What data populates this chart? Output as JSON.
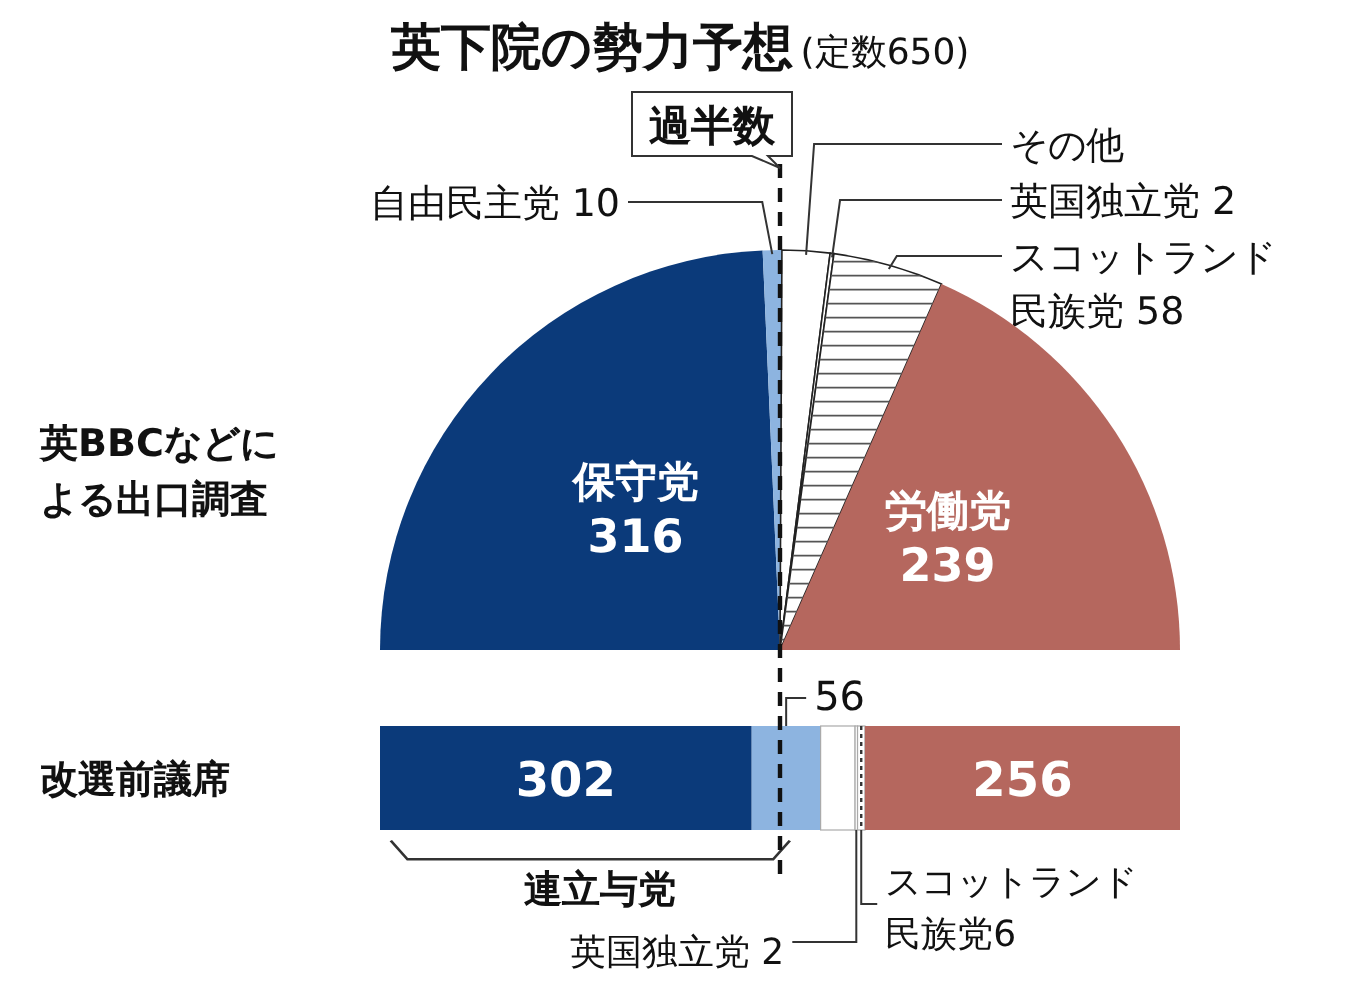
{
  "chart_data": [
    {
      "type": "pie",
      "title": "英下院の勢力予想",
      "subtitle": "(定数650)",
      "annotations": [
        "英BBCなどによる出口調査"
      ],
      "categories": [
        "保守党",
        "自由民主党",
        "その他",
        "英国独立党",
        "スコットランド民族党",
        "労働党"
      ],
      "values": [
        316,
        10,
        25,
        2,
        58,
        239
      ],
      "value_labels": [
        "316",
        "10",
        null,
        "2",
        "58",
        "239"
      ],
      "colors": [
        "#0b3a7a",
        "#8db4e0",
        "#ffffff",
        "#ffffff",
        "#ffffff",
        "#b5675e"
      ]
    },
    {
      "type": "bar",
      "orientation": "horizontal",
      "stacked": true,
      "categories": [
        "改選前議席"
      ],
      "xlim": [
        0,
        650
      ],
      "series": [
        {
          "color": "#0b3a7a",
          "values": [
            302
          ],
          "value_labels": [
            "302"
          ]
        },
        {
          "color": "#8db4e0",
          "values": [
            56
          ],
          "value_labels": [
            "56"
          ]
        },
        {
          "color": "#ffffff",
          "values": [
            28
          ]
        },
        {
          "name": "英国独立党",
          "color": "#ffffff",
          "values": [
            2
          ],
          "value_labels": [
            "2"
          ]
        },
        {
          "name": "スコットランド民族党",
          "color": "#ffffff",
          "values": [
            6
          ],
          "value_labels": [
            "6"
          ]
        },
        {
          "color": "#b5675e",
          "values": [
            256
          ],
          "value_labels": [
            "256"
          ]
        }
      ],
      "ref_lines": [
        {
          "axis": "x",
          "value": 325,
          "label": "過半数"
        }
      ],
      "annotations": [
        "連立与党"
      ]
    }
  ]
}
